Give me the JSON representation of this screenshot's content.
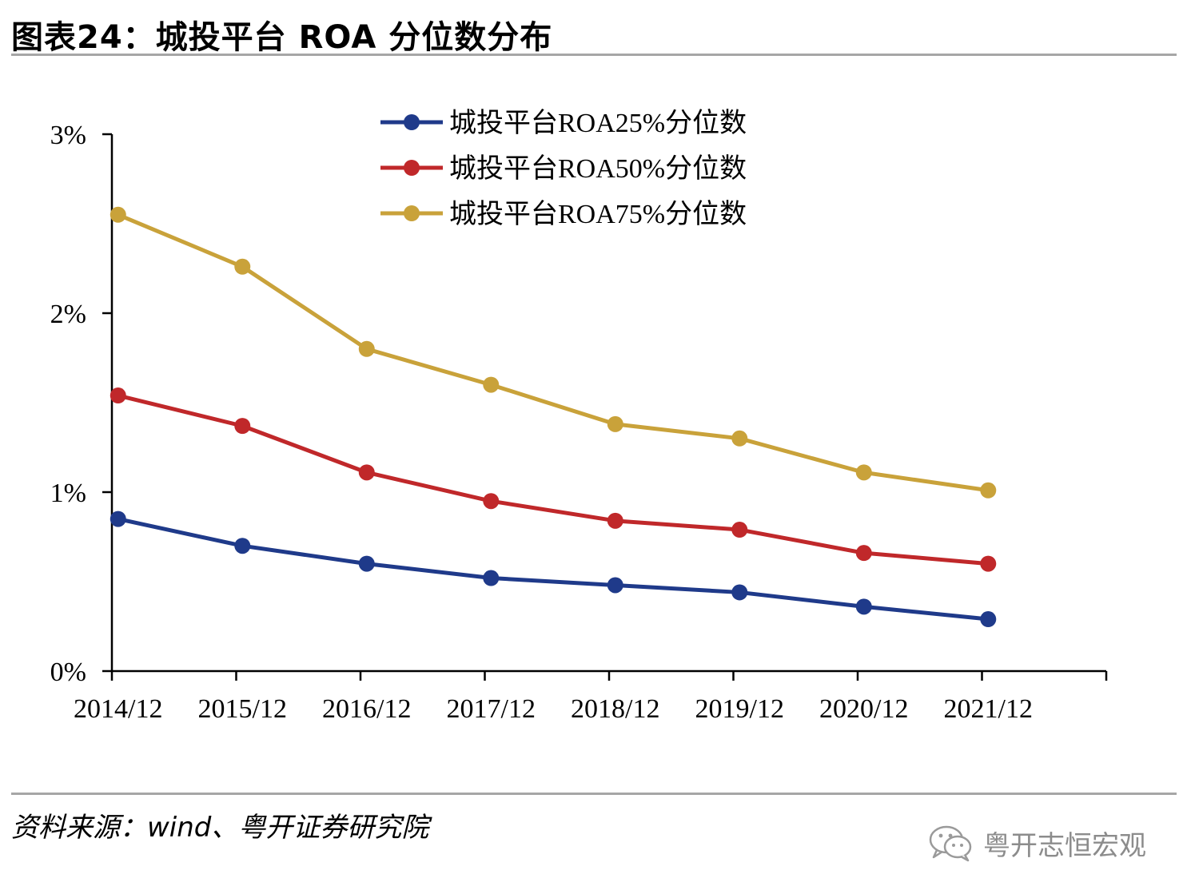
{
  "header": {
    "title": "图表24：城投平台 ROA 分位数分布"
  },
  "footer": {
    "source": "资料来源：wind、粤开证券研究院",
    "watermark": "粤开志恒宏观"
  },
  "colors": {
    "p25": "#1f3a8a",
    "p50": "#c0282a",
    "p75": "#c9a23a",
    "axis": "#000000",
    "rule": "#a6a6a6"
  },
  "chart_data": {
    "type": "line",
    "title": "",
    "xlabel": "",
    "ylabel": "",
    "categories": [
      "2014/12",
      "2015/12",
      "2016/12",
      "2017/12",
      "2018/12",
      "2019/12",
      "2020/12",
      "2021/12"
    ],
    "ylim": [
      0,
      3
    ],
    "yticks": [
      0,
      1,
      2,
      3
    ],
    "ytick_labels": [
      "0%",
      "1%",
      "2%",
      "3%"
    ],
    "grid": false,
    "legend_position": "top-center",
    "series": [
      {
        "name": "城投平台ROA25%分位数",
        "color": "#1f3a8a",
        "values": [
          0.85,
          0.7,
          0.6,
          0.52,
          0.48,
          0.44,
          0.36,
          0.29
        ]
      },
      {
        "name": "城投平台ROA50%分位数",
        "color": "#c0282a",
        "values": [
          1.54,
          1.37,
          1.11,
          0.95,
          0.84,
          0.79,
          0.66,
          0.6
        ]
      },
      {
        "name": "城投平台ROA75%分位数",
        "color": "#c9a23a",
        "values": [
          2.55,
          2.26,
          1.8,
          1.6,
          1.38,
          1.3,
          1.11,
          1.01
        ]
      }
    ]
  }
}
